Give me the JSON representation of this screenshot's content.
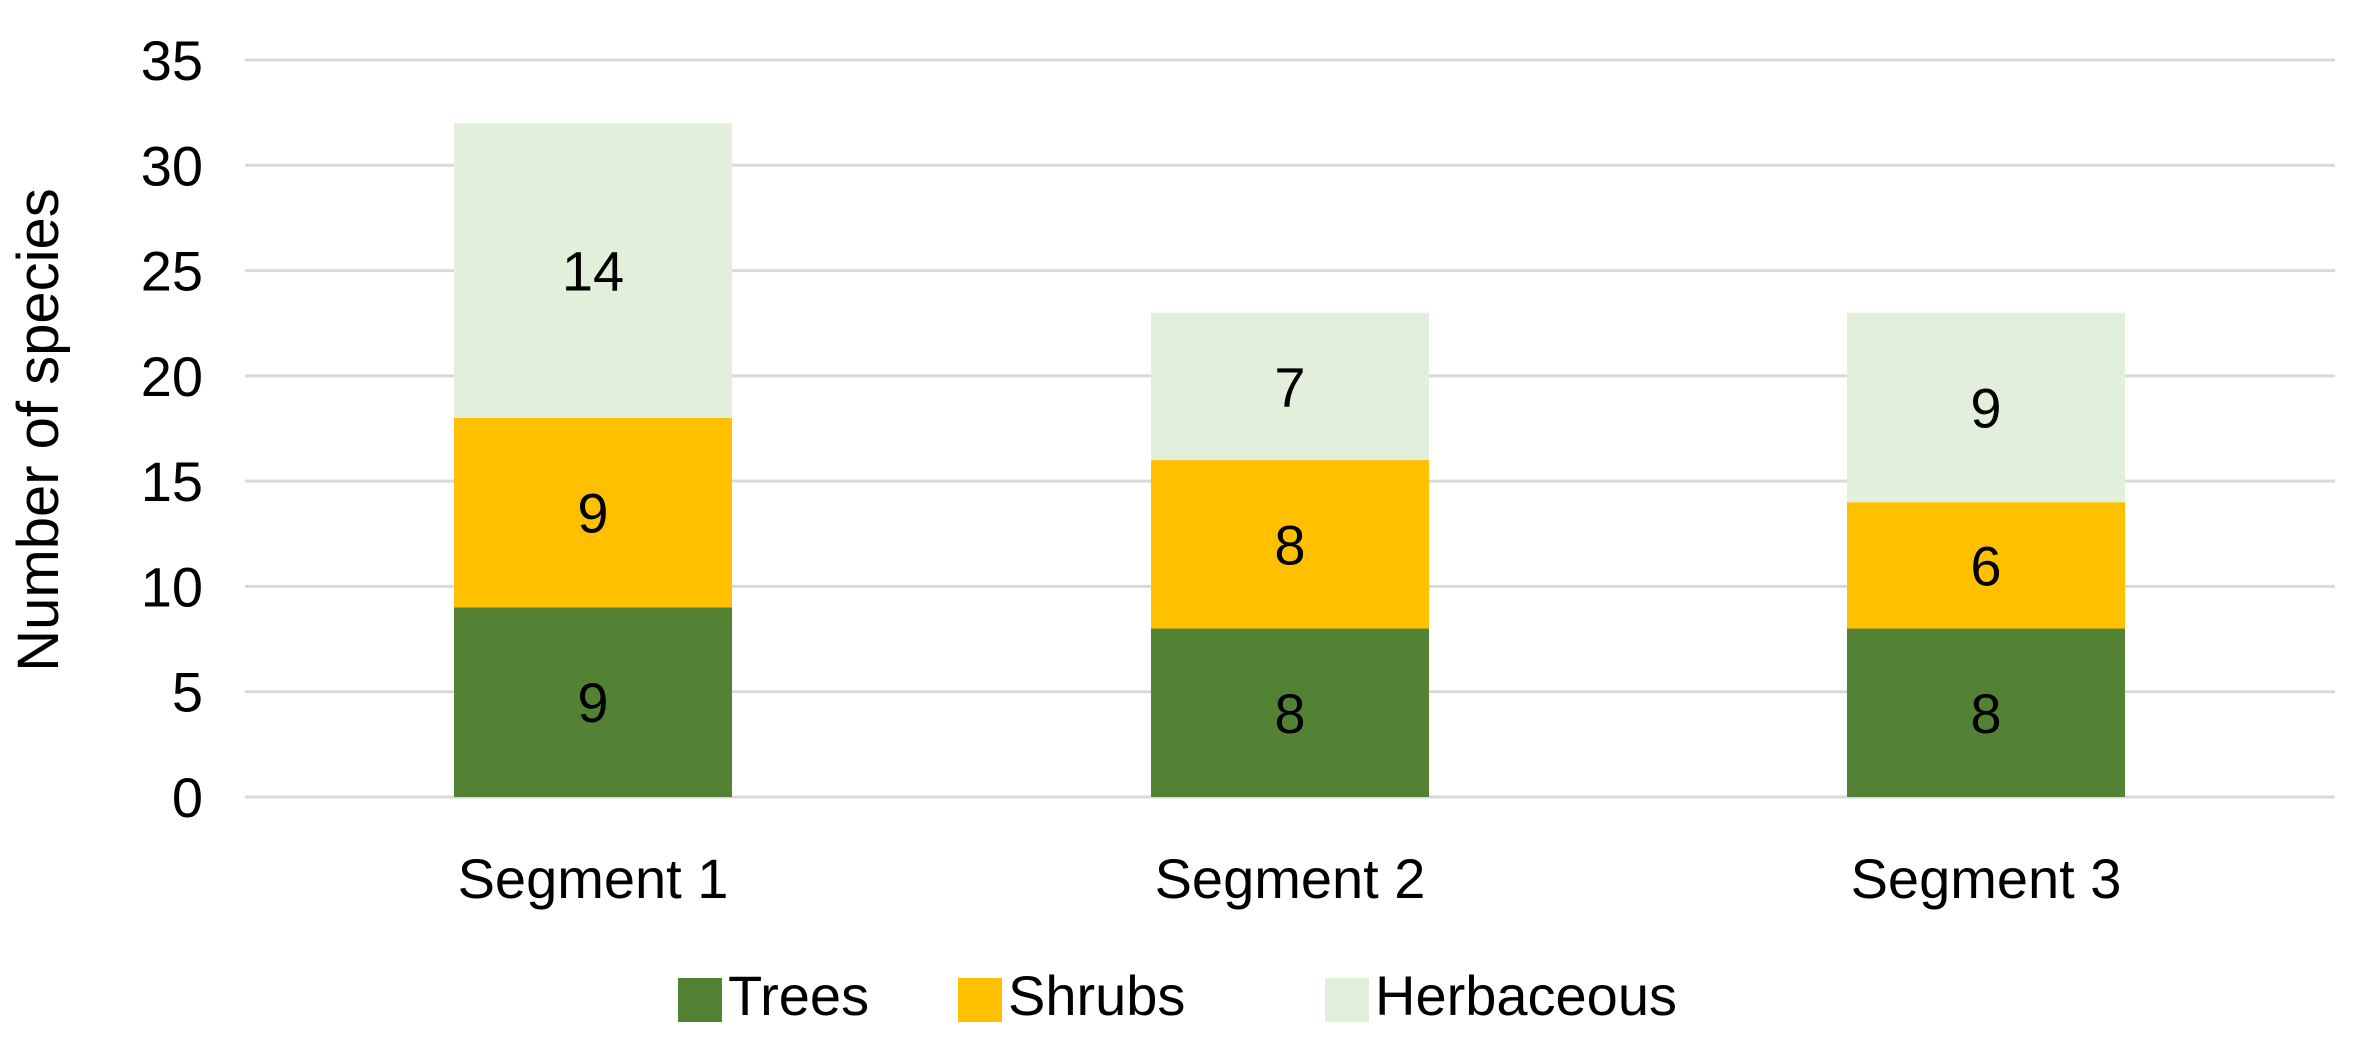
{
  "chart_data": {
    "type": "bar",
    "stacked": true,
    "title": "",
    "xlabel": "",
    "ylabel": "Number of species",
    "categories": [
      "Segment 1",
      "Segment 2",
      "Segment 3"
    ],
    "series": [
      {
        "name": "Trees",
        "values": [
          9,
          8,
          8
        ],
        "color": "#548235"
      },
      {
        "name": "Shrubs",
        "values": [
          9,
          8,
          6
        ],
        "color": "#ffc000"
      },
      {
        "name": "Herbaceous",
        "values": [
          14,
          7,
          9
        ],
        "color": "#e2efda"
      }
    ],
    "ylim": [
      0,
      35
    ],
    "yticks": [
      0,
      5,
      10,
      15,
      20,
      25,
      30,
      35
    ],
    "grid": true,
    "legend_position": "bottom",
    "data_labels": true
  }
}
